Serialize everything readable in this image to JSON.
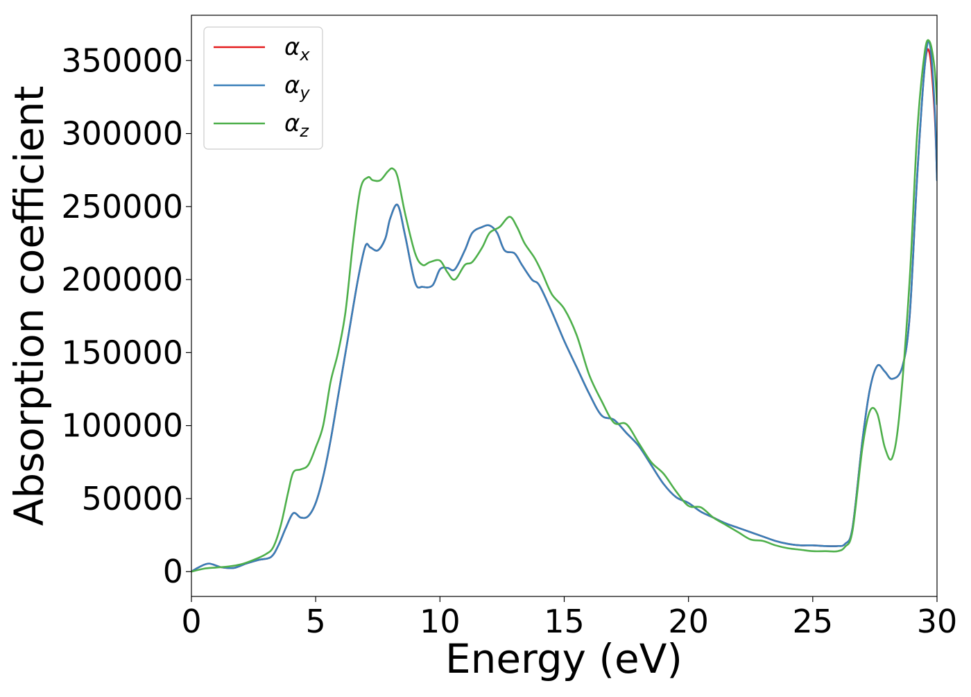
{
  "chart_data": {
    "type": "line",
    "xlabel": "Energy (eV)",
    "ylabel": "Absorption coefficient",
    "xlim": [
      0,
      30
    ],
    "ylim": [
      -17000,
      381000
    ],
    "xticks": [
      0,
      5,
      10,
      15,
      20,
      25,
      30
    ],
    "yticks": [
      0,
      50000,
      100000,
      150000,
      200000,
      250000,
      300000,
      350000
    ],
    "grid": false,
    "legend_position": "upper-left",
    "series": [
      {
        "name": "α_x",
        "label_base": "α",
        "label_sub": "x",
        "color": "#e41a1c",
        "x": [
          0,
          0.3,
          0.7,
          1.2,
          1.7,
          2.2,
          2.7,
          3.2,
          3.5,
          3.8,
          4.1,
          4.4,
          4.7,
          5.0,
          5.3,
          5.6,
          5.9,
          6.3,
          6.7,
          7.0,
          7.2,
          7.5,
          7.8,
          8.0,
          8.3,
          8.6,
          9.0,
          9.3,
          9.7,
          10.0,
          10.3,
          10.6,
          11.0,
          11.3,
          11.7,
          12.0,
          12.3,
          12.6,
          13.0,
          13.3,
          13.7,
          14.0,
          14.5,
          15.0,
          15.5,
          16.0,
          16.5,
          17.0,
          17.5,
          18.0,
          18.5,
          19.0,
          19.5,
          20.0,
          20.5,
          21.0,
          21.5,
          22.0,
          22.5,
          23.0,
          23.5,
          24.0,
          24.5,
          25.0,
          25.5,
          26.0,
          26.3,
          26.6,
          27.0,
          27.3,
          27.6,
          27.9,
          28.2,
          28.6,
          28.9,
          29.2,
          29.5,
          29.7,
          29.9,
          30.0
        ],
        "y": [
          0,
          3000,
          5500,
          3000,
          2500,
          5500,
          8000,
          10000,
          18000,
          30000,
          40000,
          37000,
          38000,
          47000,
          65000,
          90000,
          120000,
          160000,
          200000,
          223000,
          222000,
          220000,
          228000,
          242000,
          251000,
          230000,
          198000,
          195000,
          196000,
          207000,
          208000,
          207000,
          220000,
          232000,
          236000,
          237000,
          232000,
          220000,
          218000,
          210000,
          200000,
          196000,
          178000,
          158000,
          140000,
          122000,
          107000,
          104000,
          95000,
          86000,
          73000,
          60000,
          51000,
          47000,
          41000,
          37000,
          33000,
          30000,
          27000,
          24000,
          21000,
          19000,
          18000,
          18000,
          17500,
          17500,
          19000,
          30000,
          90000,
          125000,
          141000,
          137000,
          132000,
          140000,
          175000,
          270000,
          345000,
          355000,
          315000,
          270000
        ]
      },
      {
        "name": "α_y",
        "label_base": "α",
        "label_sub": "y",
        "color": "#377eb8",
        "x": [
          0,
          0.3,
          0.7,
          1.2,
          1.7,
          2.2,
          2.7,
          3.2,
          3.5,
          3.8,
          4.1,
          4.4,
          4.7,
          5.0,
          5.3,
          5.6,
          5.9,
          6.3,
          6.7,
          7.0,
          7.2,
          7.5,
          7.8,
          8.0,
          8.3,
          8.6,
          9.0,
          9.3,
          9.7,
          10.0,
          10.3,
          10.6,
          11.0,
          11.3,
          11.7,
          12.0,
          12.3,
          12.6,
          13.0,
          13.3,
          13.7,
          14.0,
          14.5,
          15.0,
          15.5,
          16.0,
          16.5,
          17.0,
          17.5,
          18.0,
          18.5,
          19.0,
          19.5,
          20.0,
          20.5,
          21.0,
          21.5,
          22.0,
          22.5,
          23.0,
          23.5,
          24.0,
          24.5,
          25.0,
          25.5,
          26.0,
          26.3,
          26.6,
          27.0,
          27.3,
          27.6,
          27.9,
          28.2,
          28.6,
          28.9,
          29.2,
          29.5,
          29.7,
          29.9,
          30.0
        ],
        "y": [
          0,
          3000,
          5500,
          3000,
          2500,
          5500,
          8000,
          10000,
          18000,
          30000,
          40000,
          37000,
          38000,
          47000,
          65000,
          90000,
          120000,
          160000,
          200000,
          223000,
          222000,
          220000,
          228000,
          242000,
          251000,
          230000,
          198000,
          195000,
          196000,
          207000,
          208000,
          207000,
          220000,
          232000,
          236000,
          237000,
          232000,
          220000,
          218000,
          210000,
          200000,
          196000,
          178000,
          158000,
          140000,
          122000,
          107000,
          104000,
          95000,
          86000,
          73000,
          60000,
          51000,
          47000,
          41000,
          37000,
          33000,
          30000,
          27000,
          24000,
          21000,
          19000,
          18000,
          18000,
          17500,
          17500,
          19000,
          30000,
          90000,
          125000,
          141000,
          137000,
          132000,
          140000,
          175000,
          270000,
          345000,
          362000,
          320000,
          268000
        ]
      },
      {
        "name": "α_z",
        "label_base": "α",
        "label_sub": "z",
        "color": "#4daf4a",
        "x": [
          0,
          0.5,
          1.0,
          1.5,
          2.0,
          2.5,
          3.0,
          3.3,
          3.6,
          3.9,
          4.1,
          4.4,
          4.7,
          5.0,
          5.3,
          5.6,
          5.9,
          6.2,
          6.5,
          6.8,
          7.1,
          7.3,
          7.6,
          7.9,
          8.1,
          8.3,
          8.6,
          9.0,
          9.3,
          9.6,
          10.0,
          10.3,
          10.6,
          11.0,
          11.3,
          11.7,
          12.0,
          12.4,
          12.8,
          13.1,
          13.4,
          13.8,
          14.1,
          14.5,
          15.0,
          15.5,
          16.0,
          16.5,
          17.0,
          17.5,
          18.0,
          18.5,
          19.0,
          19.5,
          20.0,
          20.5,
          21.0,
          21.5,
          22.0,
          22.5,
          23.0,
          23.5,
          24.0,
          24.5,
          25.0,
          25.5,
          26.0,
          26.3,
          26.6,
          27.0,
          27.3,
          27.6,
          27.9,
          28.2,
          28.5,
          28.9,
          29.2,
          29.5,
          29.7,
          29.9,
          30.0
        ],
        "y": [
          0,
          2000,
          2800,
          3500,
          5000,
          8000,
          12000,
          17000,
          32000,
          55000,
          68000,
          70000,
          73000,
          85000,
          100000,
          130000,
          150000,
          178000,
          225000,
          262000,
          270000,
          268000,
          268000,
          274000,
          276000,
          270000,
          245000,
          218000,
          210000,
          212000,
          213000,
          205000,
          200000,
          210000,
          212000,
          222000,
          232000,
          236000,
          243000,
          236000,
          225000,
          215000,
          205000,
          190000,
          180000,
          162000,
          135000,
          117000,
          102000,
          101000,
          88000,
          75000,
          67000,
          55000,
          45000,
          44000,
          37000,
          32000,
          27000,
          22000,
          21000,
          18000,
          16000,
          15000,
          14000,
          14000,
          14000,
          17000,
          28000,
          85000,
          110000,
          108000,
          85000,
          78000,
          110000,
          200000,
          300000,
          355000,
          363000,
          345000,
          320000
        ]
      }
    ]
  }
}
